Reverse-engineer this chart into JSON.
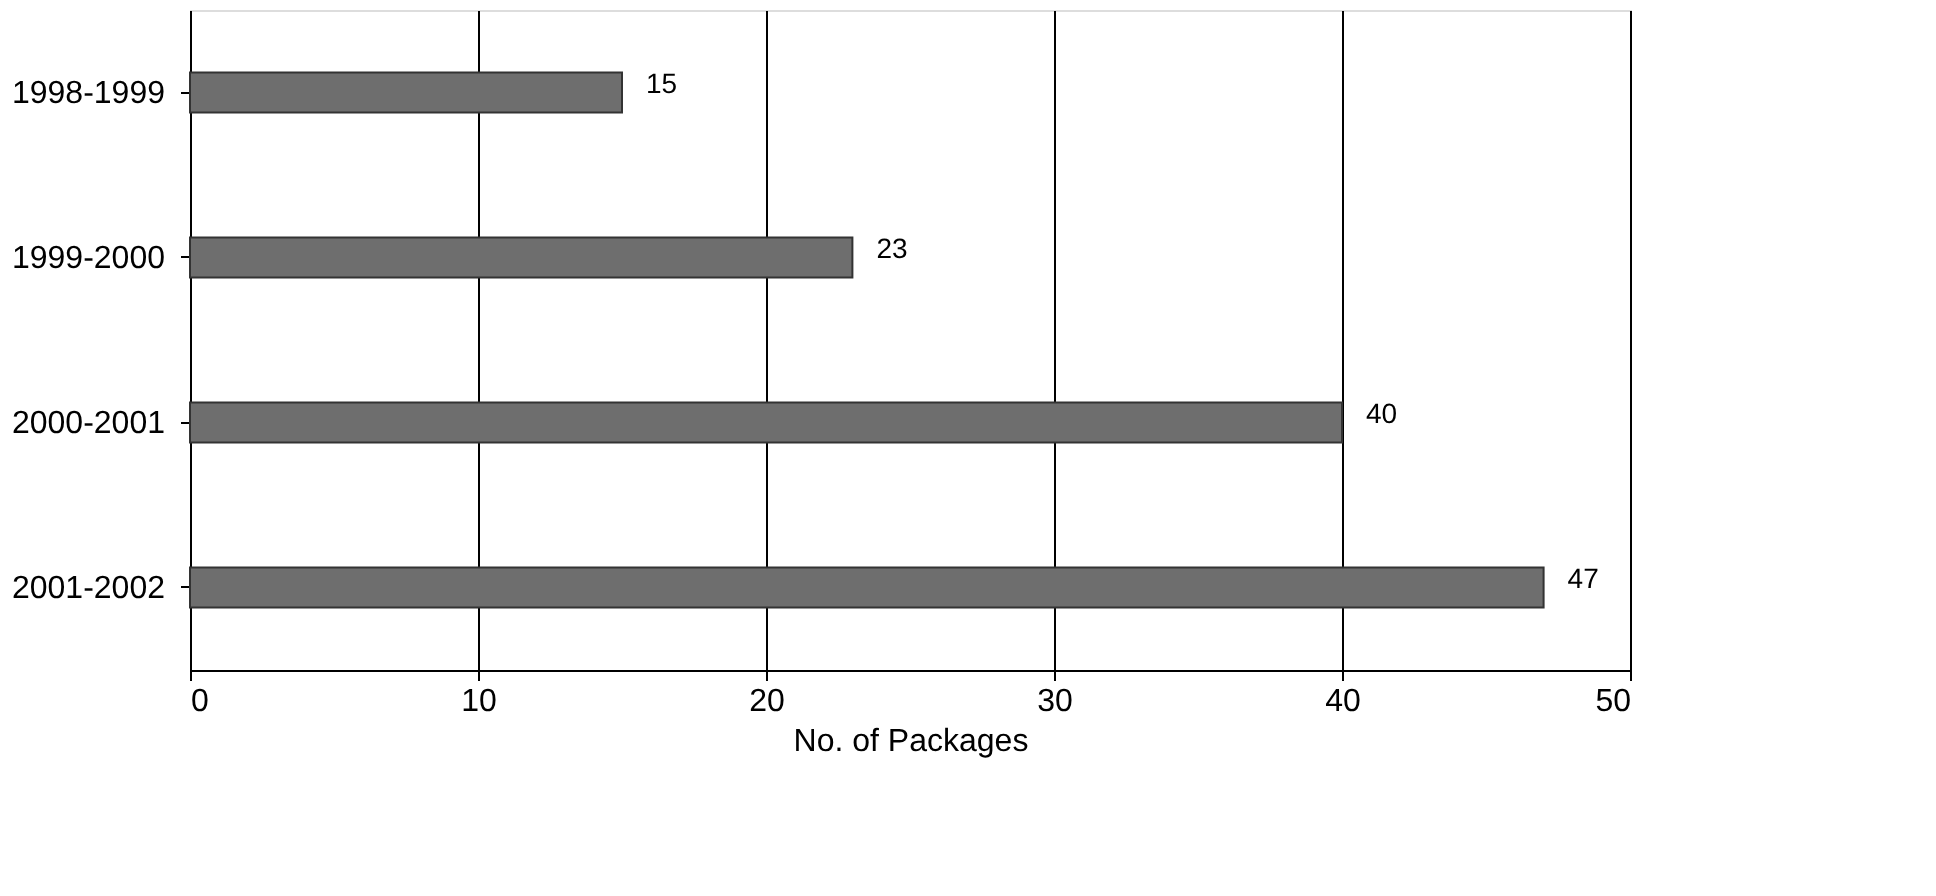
{
  "chart_data": {
    "type": "bar",
    "orientation": "horizontal",
    "xlabel": "No. of Packages",
    "categories": [
      "1998-1999",
      "1999-2000",
      "2000-2001",
      "2001-2002"
    ],
    "values": [
      15,
      23,
      40,
      47
    ],
    "color": "#6e6e6e",
    "data_labels": true,
    "xlim": [
      0,
      50
    ],
    "xticks": [
      0,
      10,
      20,
      30,
      40,
      50
    ],
    "grid": "x"
  }
}
